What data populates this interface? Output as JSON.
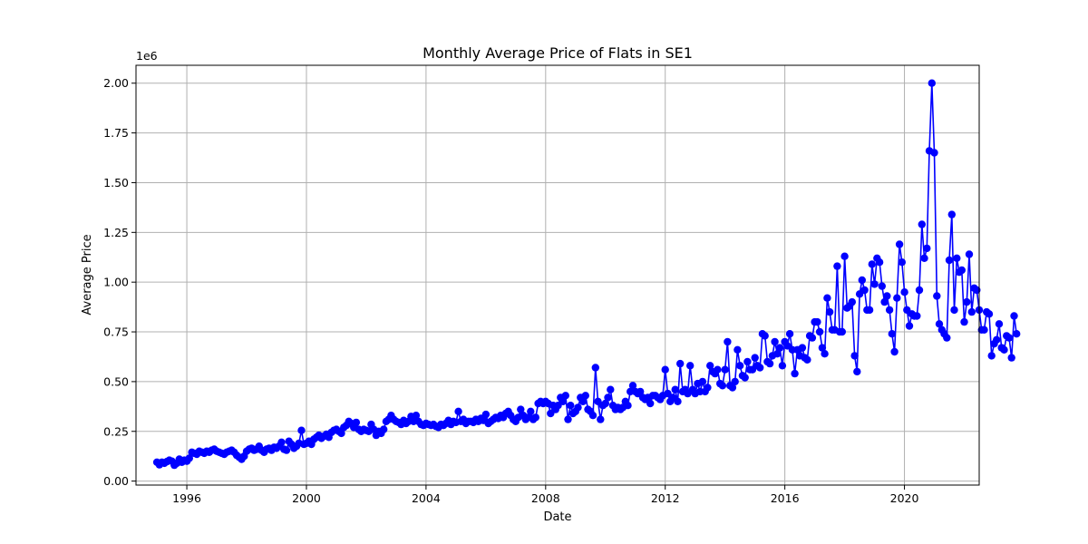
{
  "chart_data": {
    "type": "line",
    "title": "Monthly Average Price of Flats in SE1",
    "xlabel": "Date",
    "ylabel": "Average Price",
    "y_scale_label": "1e6",
    "x_unit": "year",
    "xlim": [
      1994.3,
      2022.5
    ],
    "ylim": [
      -0.02,
      2.09
    ],
    "x_ticks": [
      1996,
      2000,
      2004,
      2008,
      2012,
      2016,
      2020
    ],
    "x_tick_labels": [
      "1996",
      "2000",
      "2004",
      "2008",
      "2012",
      "2016",
      "2020"
    ],
    "y_ticks": [
      0,
      0.25,
      0.5,
      0.75,
      1.0,
      1.25,
      1.5,
      1.75,
      2.0
    ],
    "y_tick_labels": [
      "0.00",
      "0.25",
      "0.50",
      "0.75",
      "1.00",
      "1.25",
      "1.50",
      "1.75",
      "2.00"
    ],
    "grid": true,
    "legend": "none",
    "colors": {
      "series": "#0000ff",
      "grid": "#b0b0b0",
      "frame": "#000000"
    },
    "series": [
      {
        "marker": "circle",
        "x_start": "1995-01",
        "x_step": "1 month",
        "values": [
          0.095,
          0.082,
          0.095,
          0.09,
          0.098,
          0.105,
          0.1,
          0.08,
          0.09,
          0.11,
          0.095,
          0.105,
          0.1,
          0.115,
          0.145,
          0.14,
          0.135,
          0.15,
          0.145,
          0.14,
          0.15,
          0.145,
          0.155,
          0.16,
          0.15,
          0.145,
          0.14,
          0.135,
          0.145,
          0.15,
          0.155,
          0.145,
          0.13,
          0.12,
          0.11,
          0.125,
          0.15,
          0.16,
          0.165,
          0.155,
          0.16,
          0.175,
          0.155,
          0.145,
          0.16,
          0.165,
          0.155,
          0.17,
          0.165,
          0.175,
          0.195,
          0.16,
          0.155,
          0.2,
          0.185,
          0.165,
          0.175,
          0.19,
          0.255,
          0.185,
          0.19,
          0.2,
          0.185,
          0.21,
          0.22,
          0.23,
          0.215,
          0.225,
          0.235,
          0.22,
          0.245,
          0.255,
          0.26,
          0.25,
          0.24,
          0.27,
          0.28,
          0.3,
          0.29,
          0.27,
          0.295,
          0.26,
          0.25,
          0.26,
          0.255,
          0.25,
          0.285,
          0.26,
          0.23,
          0.25,
          0.24,
          0.26,
          0.3,
          0.31,
          0.33,
          0.31,
          0.3,
          0.295,
          0.285,
          0.305,
          0.29,
          0.3,
          0.325,
          0.3,
          0.33,
          0.3,
          0.285,
          0.28,
          0.29,
          0.285,
          0.28,
          0.285,
          0.275,
          0.27,
          0.285,
          0.28,
          0.29,
          0.305,
          0.285,
          0.3,
          0.295,
          0.35,
          0.3,
          0.31,
          0.29,
          0.3,
          0.3,
          0.295,
          0.31,
          0.3,
          0.315,
          0.305,
          0.335,
          0.29,
          0.3,
          0.31,
          0.32,
          0.315,
          0.33,
          0.32,
          0.34,
          0.35,
          0.33,
          0.31,
          0.3,
          0.32,
          0.36,
          0.33,
          0.31,
          0.32,
          0.35,
          0.31,
          0.32,
          0.39,
          0.4,
          0.39,
          0.4,
          0.39,
          0.34,
          0.38,
          0.36,
          0.38,
          0.42,
          0.4,
          0.43,
          0.31,
          0.38,
          0.34,
          0.35,
          0.37,
          0.42,
          0.4,
          0.43,
          0.36,
          0.35,
          0.33,
          0.57,
          0.4,
          0.31,
          0.38,
          0.39,
          0.42,
          0.46,
          0.38,
          0.36,
          0.37,
          0.36,
          0.37,
          0.4,
          0.38,
          0.45,
          0.48,
          0.45,
          0.44,
          0.45,
          0.42,
          0.41,
          0.42,
          0.39,
          0.43,
          0.43,
          0.42,
          0.41,
          0.43,
          0.56,
          0.44,
          0.4,
          0.42,
          0.46,
          0.4,
          0.59,
          0.45,
          0.46,
          0.44,
          0.58,
          0.46,
          0.44,
          0.49,
          0.45,
          0.5,
          0.45,
          0.47,
          0.58,
          0.55,
          0.54,
          0.56,
          0.49,
          0.48,
          0.56,
          0.7,
          0.48,
          0.47,
          0.5,
          0.66,
          0.58,
          0.53,
          0.52,
          0.6,
          0.56,
          0.56,
          0.62,
          0.58,
          0.57,
          0.74,
          0.73,
          0.6,
          0.59,
          0.63,
          0.7,
          0.64,
          0.67,
          0.58,
          0.7,
          0.68,
          0.74,
          0.66,
          0.54,
          0.66,
          0.63,
          0.67,
          0.62,
          0.61,
          0.73,
          0.72,
          0.8,
          0.8,
          0.75,
          0.67,
          0.64,
          0.92,
          0.85,
          0.76,
          0.76,
          1.08,
          0.75,
          0.75,
          1.13,
          0.87,
          0.88,
          0.9,
          0.63,
          0.55,
          0.94,
          1.01,
          0.96,
          0.86,
          0.86,
          1.09,
          0.99,
          1.12,
          1.1,
          0.98,
          0.9,
          0.93,
          0.86,
          0.74,
          0.65,
          0.92,
          1.19,
          1.1,
          0.95,
          0.86,
          0.78,
          0.84,
          0.83,
          0.83,
          0.96,
          1.29,
          1.12,
          1.17,
          1.66,
          2.0,
          1.65,
          0.93,
          0.79,
          0.76,
          0.74,
          0.72,
          1.11,
          1.34,
          0.86,
          1.12,
          1.05,
          1.06,
          0.8,
          0.9,
          1.14,
          0.85,
          0.97,
          0.96,
          0.86,
          0.76,
          0.76,
          0.85,
          0.84,
          0.63,
          0.69,
          0.71,
          0.79,
          0.67,
          0.66,
          0.73,
          0.72,
          0.62,
          0.83,
          0.74
        ]
      }
    ]
  }
}
